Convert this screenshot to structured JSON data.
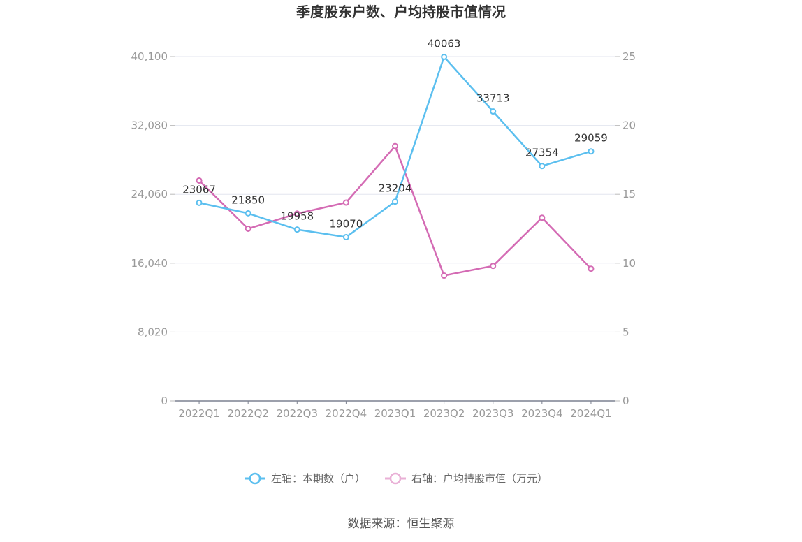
{
  "chart_data": {
    "type": "line",
    "title": "季度股东户数、户均持股市值情况",
    "categories": [
      "2022Q1",
      "2022Q2",
      "2022Q3",
      "2022Q4",
      "2023Q1",
      "2023Q2",
      "2023Q3",
      "2023Q4",
      "2024Q1"
    ],
    "left_axis": {
      "ylim": [
        0,
        40100
      ],
      "ticks": [
        "0",
        "8,020",
        "16,040",
        "24,060",
        "32,080",
        "40,100"
      ]
    },
    "right_axis": {
      "ylim": [
        0,
        25
      ],
      "ticks": [
        "0",
        "5",
        "10",
        "15",
        "20",
        "25"
      ]
    },
    "series": [
      {
        "name": "左轴：本期数（户）",
        "axis": "left",
        "color": "#5bbfef",
        "values": [
          23067,
          21850,
          19958,
          19070,
          23204,
          40063,
          33713,
          27354,
          29059
        ],
        "labels": [
          "23067",
          "21850",
          "19958",
          "19070",
          "23204",
          "40063",
          "33713",
          "27354",
          "29059"
        ]
      },
      {
        "name": "右轴：户均持股市值（万元）",
        "axis": "right",
        "color": "#d46bb4",
        "values": [
          16.0,
          12.5,
          13.6,
          14.4,
          18.5,
          9.1,
          9.8,
          13.3,
          9.6
        ]
      }
    ],
    "grid": true,
    "legend_position": "bottom"
  },
  "source": "数据来源：恒生聚源"
}
